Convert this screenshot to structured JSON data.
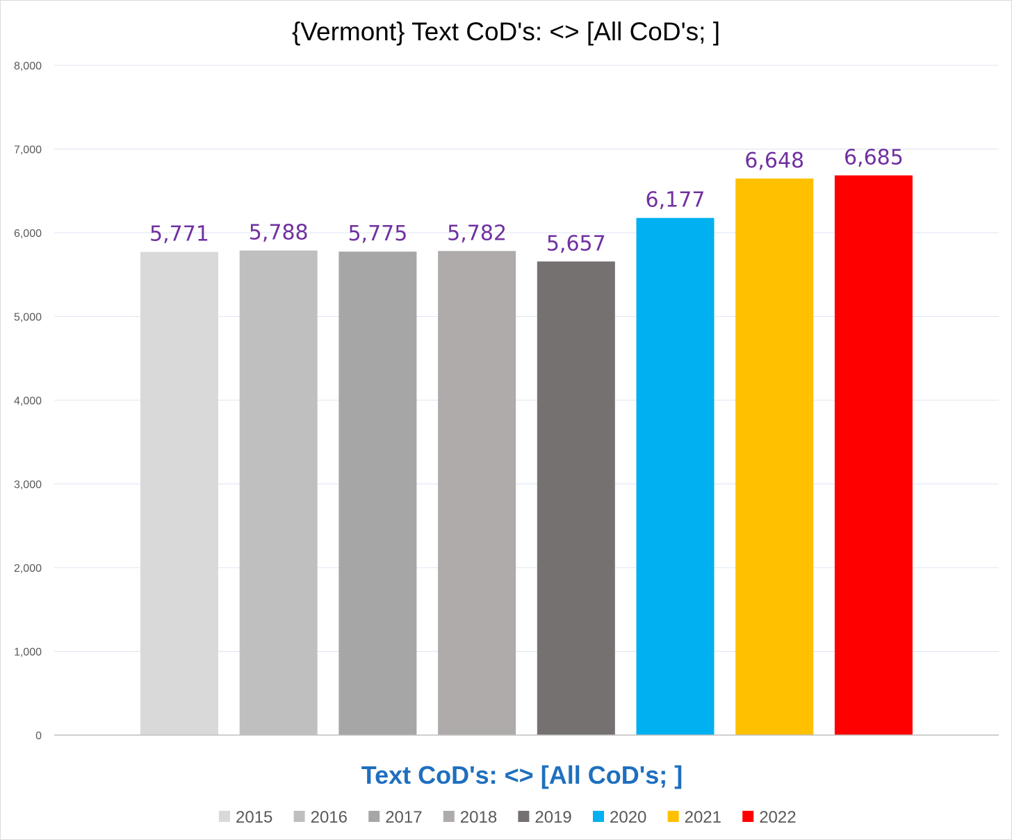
{
  "chart_data": {
    "type": "bar",
    "title": "{Vermont}  Text CoD's: <> [All CoD's; ]",
    "xlabel": "Text CoD's: <> [All CoD's; ]",
    "ylabel": "",
    "ylim": [
      0,
      8000
    ],
    "yticks": [
      0,
      1000,
      2000,
      3000,
      4000,
      5000,
      6000,
      7000,
      8000
    ],
    "ytick_labels": [
      "0",
      "1,000",
      "2,000",
      "3,000",
      "4,000",
      "5,000",
      "6,000",
      "7,000",
      "8,000"
    ],
    "grid": true,
    "legend_position": "bottom",
    "series": [
      {
        "name": "2015",
        "value": 5771,
        "label": "5,771",
        "color": "#d9d9d9"
      },
      {
        "name": "2016",
        "value": 5788,
        "label": "5,788",
        "color": "#bfbfbf"
      },
      {
        "name": "2017",
        "value": 5775,
        "label": "5,775",
        "color": "#a6a6a6"
      },
      {
        "name": "2018",
        "value": 5782,
        "label": "5,782",
        "color": "#afabab"
      },
      {
        "name": "2019",
        "value": 5657,
        "label": "5,657",
        "color": "#767171"
      },
      {
        "name": "2020",
        "value": 6177,
        "label": "6,177",
        "color": "#00b0f0"
      },
      {
        "name": "2021",
        "value": 6648,
        "label": "6,648",
        "color": "#ffc000"
      },
      {
        "name": "2022",
        "value": 6685,
        "label": "6,685",
        "color": "#ff0000"
      }
    ],
    "colors": {
      "data_label": "#7030a0",
      "xlabel": "#1f6fbf",
      "gridline": "#dce6f2",
      "axis": "#bfbfbf"
    }
  }
}
